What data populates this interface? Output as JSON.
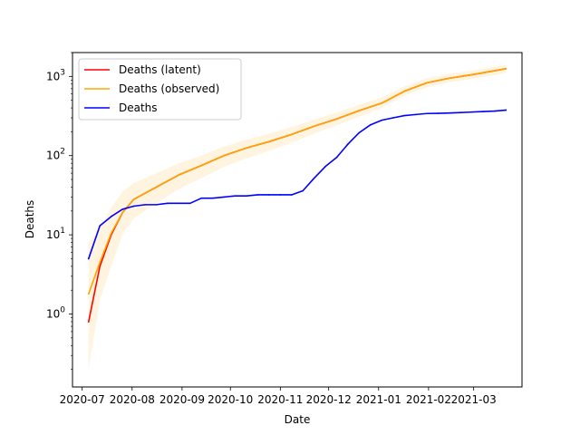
{
  "chart_data": {
    "type": "line",
    "xlabel": "Date",
    "ylabel": "Deaths",
    "y_scale": "log",
    "xlim": [
      "2020-06-25",
      "2021-03-31"
    ],
    "ylim": [
      0.12,
      2000
    ],
    "grid": false,
    "legend_position": "top-left",
    "x_tick_labels": [
      "2020-07",
      "2020-08",
      "2020-09",
      "2020-10",
      "2020-11",
      "2020-12",
      "2021-01",
      "2021-02",
      "2021-03"
    ],
    "x_ticks": [
      "2020-07-01",
      "2020-08-01",
      "2020-09-01",
      "2020-10-01",
      "2020-11-01",
      "2020-12-01",
      "2021-01-01",
      "2021-02-01",
      "2021-03-01"
    ],
    "y_ticks": [
      1,
      10,
      100,
      1000
    ],
    "y_tick_labels": [
      "10^0",
      "10^1",
      "10^2",
      "10^3"
    ],
    "series": [
      {
        "name": "Deaths (latent)",
        "color": "#ff0000",
        "x": [
          "2020-07-05",
          "2020-07-12",
          "2020-07-19",
          "2020-07-26",
          "2020-08-02",
          "2020-08-16",
          "2020-08-30",
          "2020-09-13",
          "2020-09-27",
          "2020-10-11",
          "2020-10-25",
          "2020-11-08",
          "2020-11-22",
          "2020-12-06",
          "2020-12-20",
          "2021-01-03",
          "2021-01-17",
          "2021-01-31",
          "2021-02-14",
          "2021-02-28",
          "2021-03-14",
          "2021-03-21"
        ],
        "values": [
          0.8,
          4,
          10,
          19,
          28,
          40,
          57,
          75,
          100,
          125,
          150,
          185,
          235,
          290,
          370,
          460,
          650,
          830,
          950,
          1050,
          1180,
          1250
        ]
      },
      {
        "name": "Deaths (observed)",
        "color": "#ffa500",
        "x": [
          "2020-07-05",
          "2020-07-12",
          "2020-07-19",
          "2020-07-26",
          "2020-08-02",
          "2020-08-16",
          "2020-08-30",
          "2020-09-13",
          "2020-09-27",
          "2020-10-11",
          "2020-10-25",
          "2020-11-08",
          "2020-11-22",
          "2020-12-06",
          "2020-12-20",
          "2021-01-03",
          "2021-01-17",
          "2021-01-31",
          "2021-02-14",
          "2021-02-28",
          "2021-03-14",
          "2021-03-21"
        ],
        "values": [
          1.8,
          4.5,
          10.5,
          19,
          28,
          40,
          57,
          75,
          100,
          125,
          150,
          185,
          235,
          290,
          370,
          460,
          650,
          830,
          950,
          1050,
          1180,
          1250
        ],
        "band_lower": [
          0.2,
          1.5,
          4,
          10,
          16,
          25,
          38,
          52,
          72,
          92,
          115,
          145,
          190,
          240,
          310,
          400,
          570,
          730,
          840,
          930,
          1040,
          1100
        ],
        "band_upper": [
          8,
          12,
          22,
          35,
          45,
          60,
          80,
          100,
          130,
          160,
          190,
          230,
          285,
          350,
          440,
          540,
          750,
          950,
          1080,
          1190,
          1330,
          1400
        ]
      },
      {
        "name": "Deaths",
        "color": "#0000ff",
        "x": [
          "2020-07-05",
          "2020-07-12",
          "2020-07-19",
          "2020-07-26",
          "2020-08-02",
          "2020-08-09",
          "2020-08-16",
          "2020-08-23",
          "2020-08-30",
          "2020-09-06",
          "2020-09-13",
          "2020-09-20",
          "2020-09-27",
          "2020-10-04",
          "2020-10-11",
          "2020-10-18",
          "2020-10-25",
          "2020-11-01",
          "2020-11-08",
          "2020-11-15",
          "2020-11-22",
          "2020-11-29",
          "2020-12-06",
          "2020-12-13",
          "2020-12-20",
          "2020-12-27",
          "2021-01-03",
          "2021-01-10",
          "2021-01-17",
          "2021-01-24",
          "2021-01-31",
          "2021-02-07",
          "2021-02-14",
          "2021-02-21",
          "2021-02-28",
          "2021-03-07",
          "2021-03-14",
          "2021-03-21"
        ],
        "values": [
          5,
          13,
          17,
          21,
          23,
          24,
          24,
          25,
          25,
          25,
          29,
          29,
          30,
          31,
          31,
          32,
          32,
          32,
          32,
          36,
          52,
          73,
          95,
          140,
          195,
          245,
          280,
          300,
          320,
          330,
          340,
          342,
          345,
          350,
          355,
          360,
          365,
          375
        ]
      }
    ]
  }
}
